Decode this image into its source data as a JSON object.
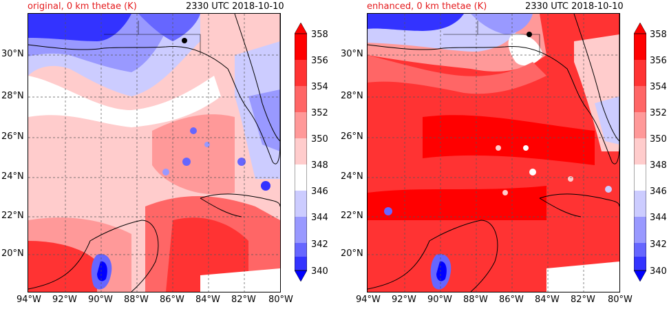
{
  "panels": [
    {
      "title_left": "original, 0 km thetae (K)",
      "title_right": "2330 UTC 2018-10-10",
      "variant": "original"
    },
    {
      "title_left": "enhanced, 0 km thetae (K)",
      "title_right": "2330 UTC 2018-10-10",
      "variant": "enhanced"
    }
  ],
  "lat_labels": [
    "30°N",
    "28°N",
    "26°N",
    "24°N",
    "22°N",
    "20°N"
  ],
  "lon_labels": [
    "94°W",
    "92°W",
    "90°W",
    "88°W",
    "86°W",
    "84°W",
    "82°W",
    "80°W"
  ],
  "colorbar": {
    "ticks": [
      "358",
      "356",
      "354",
      "352",
      "350",
      "348",
      "346",
      "344",
      "342",
      "340"
    ],
    "colors": [
      "#ff0000",
      "#ff3333",
      "#ff6666",
      "#ff9999",
      "#ffcccc",
      "#ffffff",
      "#ccccff",
      "#9999ff",
      "#6666ff",
      "#3333ff",
      "#0000ff"
    ]
  }
}
